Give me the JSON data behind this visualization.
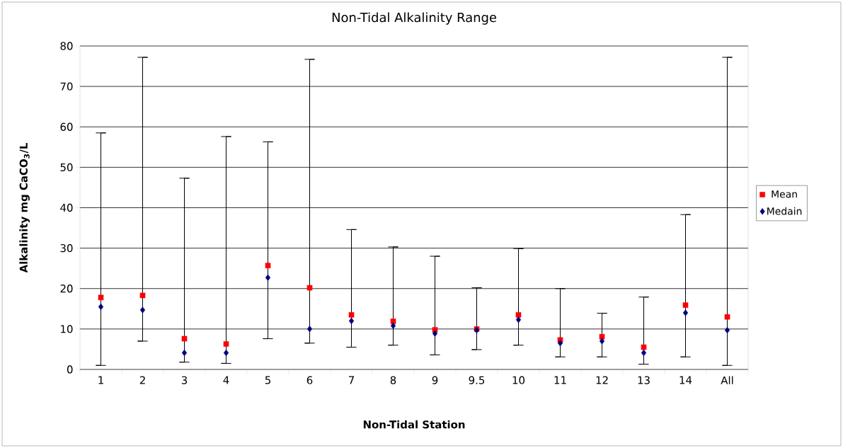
{
  "chart_data": {
    "type": "scatter",
    "title": "Non-Tidal Alkalinity Range",
    "xlabel": "Non-Tidal Station",
    "ylabel": "Alkalinity mg CaCO$_{3}$/L",
    "categories": [
      "1",
      "2",
      "3",
      "4",
      "5",
      "6",
      "7",
      "8",
      "9",
      "9.5",
      "10",
      "11",
      "12",
      "13",
      "14",
      "All"
    ],
    "series": [
      {
        "name": "Mean",
        "color": "#ff0000",
        "marker": "square",
        "values": [
          17.8,
          18.3,
          7.6,
          6.3,
          25.7,
          20.2,
          13.5,
          11.9,
          9.8,
          10.0,
          13.5,
          7.3,
          8.1,
          5.5,
          15.9,
          13.0
        ],
        "errors": [
          [
            1.0,
            58.5
          ],
          [
            7.0,
            77.2
          ],
          [
            1.8,
            47.3
          ],
          [
            1.5,
            57.6
          ],
          [
            7.6,
            56.3
          ],
          [
            6.5,
            76.7
          ],
          [
            5.5,
            34.6
          ],
          [
            6.0,
            30.3
          ],
          [
            3.6,
            28.0
          ],
          [
            4.9,
            20.2
          ],
          [
            6.0,
            29.9
          ],
          [
            3.1,
            20.0
          ],
          [
            3.1,
            13.9
          ],
          [
            1.3,
            17.9
          ],
          [
            3.1,
            38.3
          ],
          [
            1.0,
            77.2
          ]
        ]
      },
      {
        "name": "Medain",
        "color": "#000080",
        "marker": "diamond",
        "values": [
          15.5,
          14.7,
          4.1,
          4.1,
          22.7,
          10.0,
          12.0,
          10.8,
          8.9,
          9.7,
          12.3,
          6.5,
          7.0,
          4.1,
          14.0,
          9.7
        ]
      }
    ],
    "ylim": [
      0,
      80
    ],
    "yticks": [
      0,
      10,
      20,
      30,
      40,
      50,
      60,
      70,
      80
    ],
    "grid": "y",
    "legend": "right"
  }
}
